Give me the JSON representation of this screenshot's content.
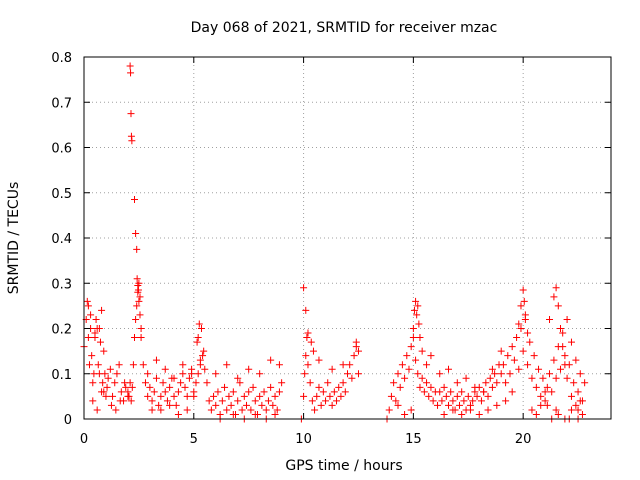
{
  "chart_data": {
    "type": "scatter",
    "title": "Day 068 of 2021, SRMTID for receiver mzac",
    "xlabel": "GPS time / hours",
    "ylabel": "SRMTID / TECUs",
    "xlim": [
      0,
      24
    ],
    "ylim": [
      0,
      0.8
    ],
    "grid": true,
    "marker": "+",
    "color": "#ff0000",
    "xticks": [
      0,
      5,
      10,
      15,
      20
    ],
    "xtick_labels": [
      "0",
      "5",
      "10",
      "15",
      "20"
    ],
    "yticks": [
      0,
      0.1,
      0.2,
      0.3,
      0.4,
      0.5,
      0.6,
      0.7,
      0.8
    ],
    "ytick_labels": [
      "0",
      "0.1",
      "0.2",
      "0.3",
      "0.4",
      "0.5",
      "0.6",
      "0.7",
      "0.8"
    ],
    "series": [
      {
        "name": "mzac",
        "x": [
          0.0,
          0.1,
          0.15,
          0.2,
          0.25,
          0.3,
          0.35,
          0.4,
          0.45,
          0.5,
          0.55,
          0.6,
          0.65,
          0.7,
          0.75,
          0.8,
          0.85,
          0.9,
          0.95,
          1.0,
          0.2,
          0.3,
          0.5,
          0.7,
          0.9,
          0.4,
          0.6,
          0.8,
          1.05,
          1.1,
          1.2,
          1.3,
          1.4,
          1.5,
          1.6,
          1.7,
          1.8,
          1.9,
          2.0,
          1.25,
          1.45,
          1.65,
          1.85,
          2.0,
          2.05,
          2.1,
          2.15,
          2.2,
          2.25,
          2.3,
          2.35,
          2.4,
          2.45,
          2.5,
          2.55,
          2.6,
          2.1,
          2.12,
          2.14,
          2.16,
          2.18,
          2.3,
          2.35,
          2.4,
          2.42,
          2.45,
          2.48,
          2.5,
          2.55,
          2.6,
          2.7,
          2.8,
          2.9,
          3.0,
          3.1,
          3.2,
          3.3,
          3.4,
          3.5,
          3.6,
          3.7,
          3.8,
          3.9,
          4.0,
          4.1,
          4.2,
          4.3,
          4.4,
          4.5,
          4.6,
          4.7,
          4.8,
          4.9,
          5.0,
          2.9,
          3.3,
          3.7,
          4.1,
          4.5,
          4.9,
          3.1,
          3.5,
          3.9,
          4.3,
          4.7,
          5.0,
          5.1,
          5.2,
          5.3,
          5.4,
          5.5,
          5.15,
          5.25,
          5.35,
          5.45,
          5.2,
          5.3,
          5.6,
          5.7,
          5.8,
          5.9,
          6.0,
          6.1,
          6.2,
          6.3,
          6.4,
          6.5,
          6.6,
          6.7,
          6.8,
          6.9,
          7.0,
          7.1,
          7.2,
          7.3,
          7.4,
          7.5,
          7.6,
          7.7,
          7.8,
          7.9,
          8.0,
          8.1,
          8.2,
          8.3,
          8.4,
          8.5,
          8.6,
          8.7,
          8.8,
          8.9,
          9.0,
          6.0,
          6.5,
          7.0,
          7.5,
          8.0,
          8.5,
          8.9,
          6.2,
          6.8,
          7.3,
          7.8,
          8.3,
          8.7,
          9.9,
          10.0,
          10.05,
          10.1,
          10.15,
          10.2,
          10.3,
          10.4,
          10.5,
          10.6,
          10.7,
          10.8,
          10.9,
          11.0,
          11.1,
          11.2,
          11.3,
          11.4,
          11.5,
          11.6,
          11.7,
          11.8,
          11.9,
          12.0,
          12.1,
          12.2,
          12.3,
          12.4,
          12.5,
          10.0,
          10.1,
          10.2,
          10.35,
          10.45,
          10.7,
          11.3,
          11.8,
          12.4,
          12.5,
          13.8,
          13.9,
          14.0,
          14.1,
          14.2,
          14.3,
          14.4,
          14.5,
          14.6,
          14.7,
          14.8,
          14.9,
          15.0,
          15.1,
          15.2,
          15.3,
          15.4,
          15.5,
          15.6,
          15.7,
          15.8,
          15.9,
          16.0,
          14.3,
          14.6,
          14.9,
          15.0,
          15.05,
          15.1,
          15.15,
          15.2,
          15.25,
          15.3,
          15.4,
          15.6,
          15.8,
          16.1,
          16.2,
          16.3,
          16.4,
          16.5,
          16.6,
          16.7,
          16.8,
          16.9,
          17.0,
          17.1,
          17.2,
          17.3,
          17.4,
          17.5,
          17.6,
          17.7,
          17.8,
          17.9,
          18.0,
          18.1,
          18.2,
          18.3,
          18.4,
          18.5,
          18.6,
          18.7,
          18.8,
          18.9,
          19.0,
          16.2,
          16.6,
          17.0,
          17.4,
          17.8,
          18.2,
          18.6,
          19.0,
          16.4,
          16.8,
          17.2,
          17.6,
          18.0,
          18.4,
          18.8,
          19.1,
          19.2,
          19.3,
          19.4,
          19.5,
          19.6,
          19.7,
          19.8,
          19.9,
          20.0,
          20.1,
          20.2,
          20.3,
          20.4,
          20.5,
          20.6,
          20.7,
          20.8,
          20.9,
          21.0,
          19.2,
          19.5,
          19.8,
          19.9,
          20.0,
          20.05,
          20.1,
          20.2,
          20.4,
          20.6,
          20.8,
          21.0,
          21.1,
          21.2,
          21.3,
          21.4,
          21.5,
          21.6,
          21.7,
          21.8,
          21.9,
          22.0,
          22.1,
          22.2,
          22.3,
          22.4,
          22.5,
          22.6,
          22.7,
          22.8,
          21.2,
          21.4,
          21.5,
          21.6,
          21.7,
          21.8,
          21.9,
          22.0,
          22.2,
          22.4,
          22.5,
          22.6,
          21.3,
          21.6,
          21.9,
          22.2,
          22.5,
          22.7,
          21.1,
          21.5,
          22.1
        ],
        "y": [
          0.16,
          0.22,
          0.26,
          0.18,
          0.12,
          0.2,
          0.14,
          0.08,
          0.1,
          0.18,
          0.22,
          0.2,
          0.12,
          0.1,
          0.17,
          0.24,
          0.08,
          0.06,
          0.1,
          0.05,
          0.25,
          0.23,
          0.19,
          0.2,
          0.15,
          0.04,
          0.02,
          0.06,
          0.07,
          0.09,
          0.11,
          0.05,
          0.08,
          0.1,
          0.12,
          0.06,
          0.04,
          0.07,
          0.05,
          0.03,
          0.02,
          0.04,
          0.08,
          0.06,
          0.05,
          0.08,
          0.04,
          0.07,
          0.12,
          0.18,
          0.22,
          0.25,
          0.28,
          0.3,
          0.27,
          0.2,
          0.78,
          0.765,
          0.675,
          0.625,
          0.615,
          0.485,
          0.41,
          0.375,
          0.31,
          0.295,
          0.285,
          0.26,
          0.23,
          0.18,
          0.12,
          0.08,
          0.05,
          0.07,
          0.04,
          0.06,
          0.09,
          0.03,
          0.05,
          0.08,
          0.06,
          0.04,
          0.07,
          0.09,
          0.05,
          0.03,
          0.06,
          0.08,
          0.1,
          0.07,
          0.05,
          0.09,
          0.11,
          0.06,
          0.1,
          0.13,
          0.11,
          0.09,
          0.12,
          0.1,
          0.02,
          0.02,
          0.03,
          0.01,
          0.02,
          0.05,
          0.08,
          0.1,
          0.12,
          0.14,
          0.11,
          0.17,
          0.21,
          0.2,
          0.15,
          0.18,
          0.13,
          0.08,
          0.04,
          0.02,
          0.05,
          0.03,
          0.06,
          0.01,
          0.04,
          0.07,
          0.02,
          0.05,
          0.03,
          0.06,
          0.01,
          0.04,
          0.08,
          0.02,
          0.05,
          0.03,
          0.06,
          0.02,
          0.07,
          0.04,
          0.01,
          0.05,
          0.03,
          0.06,
          0.02,
          0.04,
          0.07,
          0.03,
          0.05,
          0.02,
          0.06,
          0.08,
          0.1,
          0.12,
          0.09,
          0.11,
          0.1,
          0.13,
          0.12,
          0.0,
          0.01,
          0.0,
          0.01,
          0.0,
          0.01,
          0.0,
          0.05,
          0.1,
          0.14,
          0.18,
          0.12,
          0.08,
          0.04,
          0.02,
          0.05,
          0.07,
          0.03,
          0.06,
          0.04,
          0.08,
          0.05,
          0.03,
          0.06,
          0.04,
          0.07,
          0.05,
          0.08,
          0.06,
          0.1,
          0.12,
          0.09,
          0.14,
          0.16,
          0.1,
          0.29,
          0.24,
          0.19,
          0.17,
          0.15,
          0.13,
          0.11,
          0.12,
          0.17,
          0.15,
          0.0,
          0.02,
          0.05,
          0.08,
          0.04,
          0.1,
          0.07,
          0.12,
          0.09,
          0.14,
          0.11,
          0.16,
          0.18,
          0.13,
          0.1,
          0.07,
          0.09,
          0.06,
          0.08,
          0.05,
          0.07,
          0.04,
          0.06,
          0.03,
          0.01,
          0.02,
          0.2,
          0.24,
          0.26,
          0.23,
          0.25,
          0.21,
          0.18,
          0.15,
          0.12,
          0.14,
          0.03,
          0.06,
          0.04,
          0.07,
          0.05,
          0.03,
          0.06,
          0.04,
          0.02,
          0.05,
          0.03,
          0.06,
          0.04,
          0.02,
          0.05,
          0.03,
          0.04,
          0.06,
          0.05,
          0.07,
          0.04,
          0.06,
          0.08,
          0.05,
          0.09,
          0.07,
          0.1,
          0.08,
          0.12,
          0.1,
          0.1,
          0.11,
          0.08,
          0.09,
          0.07,
          0.06,
          0.11,
          0.15,
          0.01,
          0.02,
          0.01,
          0.02,
          0.01,
          0.02,
          0.03,
          0.12,
          0.08,
          0.14,
          0.1,
          0.16,
          0.13,
          0.18,
          0.11,
          0.2,
          0.15,
          0.22,
          0.12,
          0.17,
          0.09,
          0.14,
          0.07,
          0.11,
          0.05,
          0.09,
          0.06,
          0.04,
          0.06,
          0.21,
          0.25,
          0.285,
          0.26,
          0.23,
          0.19,
          0.02,
          0.01,
          0.03,
          0.04,
          0.07,
          0.1,
          0.06,
          0.13,
          0.09,
          0.16,
          0.11,
          0.19,
          0.14,
          0.22,
          0.12,
          0.17,
          0.08,
          0.13,
          0.06,
          0.1,
          0.04,
          0.08,
          0.22,
          0.27,
          0.29,
          0.25,
          0.2,
          0.16,
          0.12,
          0.09,
          0.05,
          0.03,
          0.02,
          0.04,
          0.0,
          0.01,
          0.0,
          0.02,
          0.0,
          0.01,
          0.03,
          0.02,
          0.0
        ]
      }
    ]
  }
}
